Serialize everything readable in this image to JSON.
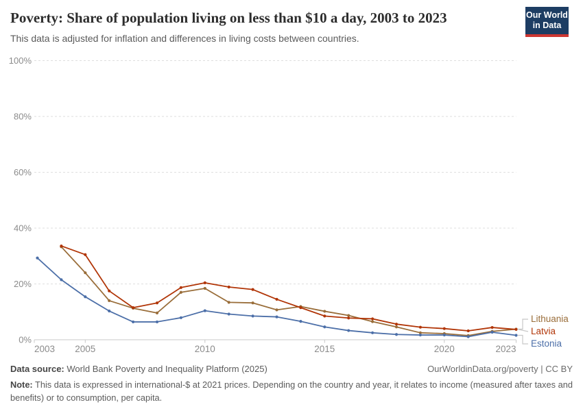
{
  "logo": {
    "line1": "Our World",
    "line2": "in Data"
  },
  "chart_data": {
    "type": "line",
    "title": "Poverty: Share of population living on less than $10 a day, 2003 to 2023",
    "subtitle": "This data is adjusted for inflation and differences in living costs between countries.",
    "x": [
      2003,
      2004,
      2005,
      2006,
      2007,
      2008,
      2009,
      2010,
      2011,
      2012,
      2013,
      2014,
      2015,
      2016,
      2017,
      2018,
      2019,
      2020,
      2021,
      2022,
      2023
    ],
    "series": [
      {
        "name": "Lithuania",
        "color": "#996D39",
        "values": [
          null,
          33.3,
          24.0,
          14.0,
          11.3,
          9.6,
          17.0,
          18.4,
          13.4,
          13.2,
          10.7,
          11.9,
          10.2,
          8.7,
          6.5,
          4.6,
          2.5,
          2.2,
          1.5,
          3.0,
          3.8
        ]
      },
      {
        "name": "Latvia",
        "color": "#B13507",
        "values": [
          null,
          33.6,
          30.5,
          17.5,
          11.5,
          13.2,
          18.7,
          20.4,
          18.9,
          18.0,
          14.5,
          11.5,
          8.5,
          7.8,
          7.5,
          5.6,
          4.5,
          4.0,
          3.2,
          4.4,
          3.7
        ]
      },
      {
        "name": "Estonia",
        "color": "#4C6FA8",
        "values": [
          29.3,
          21.5,
          15.4,
          10.3,
          6.4,
          6.4,
          7.9,
          10.4,
          9.2,
          8.5,
          8.2,
          6.6,
          4.6,
          3.3,
          2.5,
          1.9,
          1.7,
          1.7,
          1.1,
          2.7,
          1.6
        ]
      }
    ],
    "ylim": [
      0,
      100
    ],
    "yticks": [
      0,
      20,
      40,
      60,
      80,
      100
    ],
    "ytick_suffix": "%",
    "xticks": [
      2003,
      2005,
      2010,
      2015,
      2020,
      2023
    ],
    "grid": "horizontal-dashed",
    "legend_position": "right-of-line-ends"
  },
  "footer": {
    "source_label": "Data source:",
    "source_value": "World Bank Poverty and Inequality Platform (2025)",
    "citation": "OurWorldinData.org/poverty | CC BY",
    "note_label": "Note:",
    "note_value": "This data is expressed in international-$ at 2021 prices. Depending on the country and year, it relates to income (measured after taxes and benefits) or to consumption, per capita."
  },
  "colors": {
    "accent_navy": "#1d3d63",
    "accent_red": "#cd3732",
    "grid": "#dedede",
    "axis": "#c8c8c8",
    "tick_text": "#8b8b8b",
    "connector": "#c7c7c7",
    "lithuania": "#996D39",
    "latvia": "#B13507",
    "estonia": "#4C6FA8"
  }
}
